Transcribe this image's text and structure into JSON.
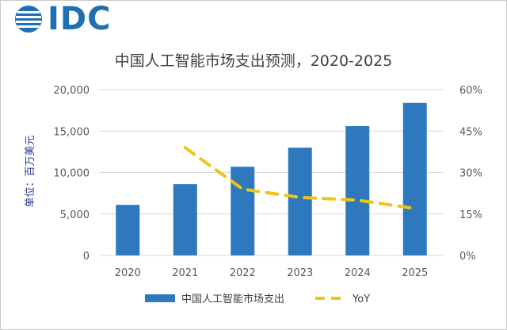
{
  "logo": {
    "text": "IDC",
    "color": "#1f6fb2"
  },
  "chart_data": {
    "type": "bar",
    "title": "中国人工智能市场支出预测，2020-2025",
    "ylabel": "单位：百万美元",
    "categories": [
      "2020",
      "2021",
      "2022",
      "2023",
      "2024",
      "2025"
    ],
    "ylim": [
      0,
      20000
    ],
    "y_ticks": [
      "0",
      "5,000",
      "10,000",
      "15,000",
      "20,000"
    ],
    "y2lim": [
      0,
      60
    ],
    "y2_ticks": [
      "0%",
      "15%",
      "30%",
      "45%",
      "60%"
    ],
    "grid": true,
    "legend_position": "bottom",
    "series": [
      {
        "name": "中国人工智能市场支出",
        "kind": "bar",
        "axis": "left",
        "color": "#2e79bd",
        "values": [
          6100,
          8600,
          10700,
          13000,
          15600,
          18400
        ]
      },
      {
        "name": "YoY",
        "kind": "line",
        "style": "dashed",
        "axis": "right",
        "color": "#f0c419",
        "values": [
          null,
          39,
          24,
          21,
          20,
          17
        ]
      }
    ]
  }
}
